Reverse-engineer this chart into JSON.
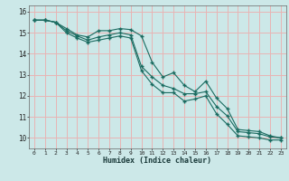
{
  "xlabel": "Humidex (Indice chaleur)",
  "ylabel": "",
  "bg_color": "#cce8e8",
  "grid_color": "#e8b4b4",
  "line_color": "#1a6b60",
  "xlim": [
    -0.5,
    23.5
  ],
  "ylim": [
    9.5,
    16.3
  ],
  "xticks": [
    0,
    1,
    2,
    3,
    4,
    5,
    6,
    7,
    8,
    9,
    10,
    11,
    12,
    13,
    14,
    15,
    16,
    17,
    18,
    19,
    20,
    21,
    22,
    23
  ],
  "yticks": [
    10,
    11,
    12,
    13,
    14,
    15,
    16
  ],
  "series1": {
    "x": [
      0,
      1,
      2,
      3,
      4,
      5,
      6,
      7,
      8,
      9,
      10,
      11,
      12,
      13,
      14,
      15,
      16,
      17,
      18,
      19,
      20,
      21,
      22,
      23
    ],
    "y": [
      15.6,
      15.6,
      15.5,
      15.2,
      14.9,
      14.8,
      15.1,
      15.1,
      15.2,
      15.15,
      14.85,
      13.6,
      12.9,
      13.1,
      12.5,
      12.2,
      12.7,
      11.9,
      11.4,
      10.4,
      10.35,
      10.3,
      10.1,
      10.0
    ]
  },
  "series2": {
    "x": [
      0,
      1,
      2,
      3,
      4,
      5,
      6,
      7,
      8,
      9,
      10,
      11,
      12,
      13,
      14,
      15,
      16,
      17,
      18,
      19,
      20,
      21,
      22,
      23
    ],
    "y": [
      15.6,
      15.6,
      15.5,
      15.1,
      14.85,
      14.65,
      14.8,
      14.9,
      15.0,
      14.9,
      13.4,
      12.9,
      12.5,
      12.35,
      12.1,
      12.1,
      12.2,
      11.5,
      11.05,
      10.3,
      10.25,
      10.2,
      10.05,
      10.0
    ]
  },
  "series3": {
    "x": [
      0,
      1,
      2,
      3,
      4,
      5,
      6,
      7,
      8,
      9,
      10,
      11,
      12,
      13,
      14,
      15,
      16,
      17,
      18,
      19,
      20,
      21,
      22,
      23
    ],
    "y": [
      15.6,
      15.6,
      15.5,
      15.0,
      14.75,
      14.55,
      14.65,
      14.75,
      14.85,
      14.75,
      13.2,
      12.55,
      12.15,
      12.15,
      11.75,
      11.85,
      12.0,
      11.15,
      10.65,
      10.1,
      10.05,
      10.0,
      9.9,
      9.9
    ]
  }
}
